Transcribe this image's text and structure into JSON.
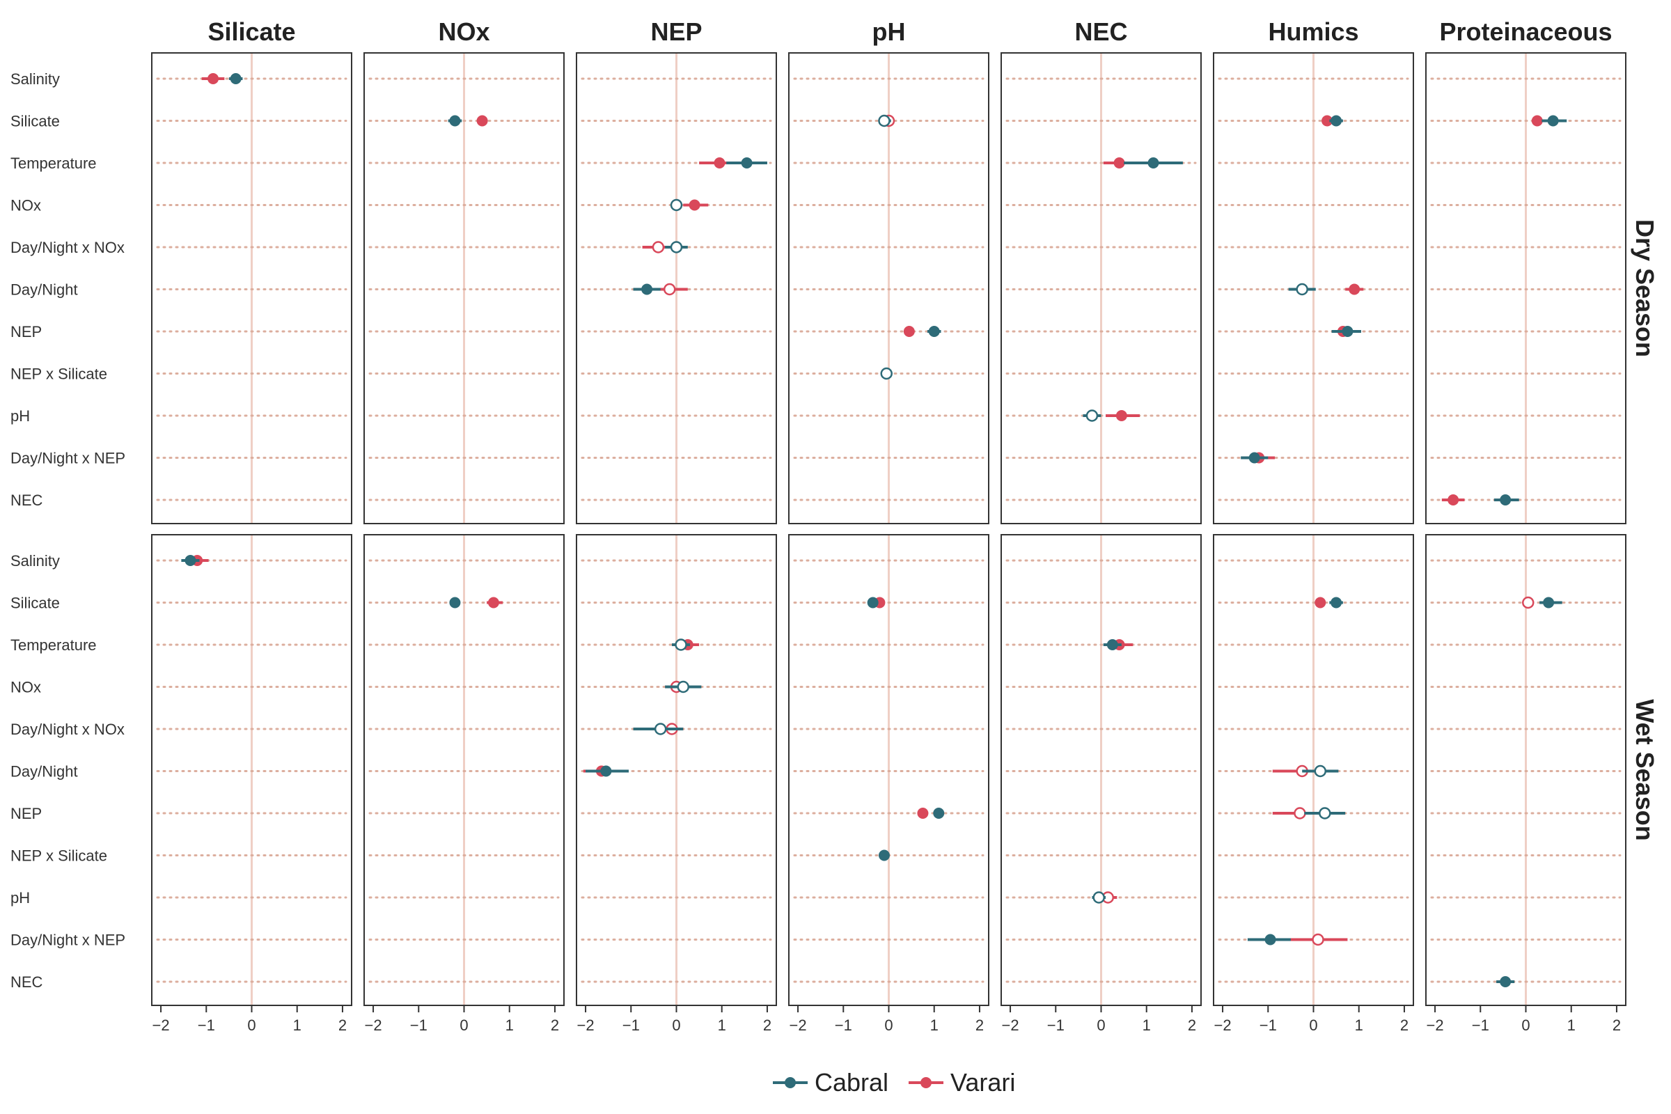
{
  "chart_data": {
    "type": "scatter",
    "subtype": "coefficient-dot-whisker",
    "columns": [
      "Silicate",
      "NOx",
      "NEP",
      "pH",
      "NEC",
      "Humics",
      "Proteinaceous"
    ],
    "rows": [
      "Dry Season",
      "Wet Season"
    ],
    "predictors": [
      "Salinity",
      "Silicate",
      "Temperature",
      "NOx",
      "Day/Night x NOx",
      "Day/Night",
      "NEP",
      "NEP x Silicate",
      "pH",
      "Day/Night x NEP",
      "NEC"
    ],
    "xlim": [
      -2.2,
      2.2
    ],
    "x_ticks": [
      -2,
      -1,
      0,
      1,
      2
    ],
    "x_tick_labels": [
      "−2",
      "−1",
      "0",
      "1",
      "2"
    ],
    "reference_line": 0,
    "legend": {
      "position": "bottom",
      "entries": [
        {
          "name": "Cabral",
          "color": "#2e6b78"
        },
        {
          "name": "Varari",
          "color": "#d9485a"
        }
      ]
    },
    "colors": {
      "Cabral": "#2e6b78",
      "Varari": "#d9485a",
      "gridline": "#dcae9e",
      "zero_line": "#efcfc5"
    },
    "points": [
      {
        "row": "Dry Season",
        "col": "Silicate",
        "pred": "Salinity",
        "site": "Varari",
        "est": -0.85,
        "lo": -1.1,
        "hi": -0.6,
        "filled": true
      },
      {
        "row": "Dry Season",
        "col": "Silicate",
        "pred": "Salinity",
        "site": "Cabral",
        "est": -0.35,
        "lo": -0.5,
        "hi": -0.2,
        "filled": true
      },
      {
        "row": "Dry Season",
        "col": "NOx",
        "pred": "Silicate",
        "site": "Cabral",
        "est": -0.2,
        "lo": -0.35,
        "hi": -0.05,
        "filled": true
      },
      {
        "row": "Dry Season",
        "col": "NOx",
        "pred": "Silicate",
        "site": "Varari",
        "est": 0.4,
        "lo": 0.3,
        "hi": 0.5,
        "filled": true
      },
      {
        "row": "Dry Season",
        "col": "NEP",
        "pred": "Temperature",
        "site": "Varari",
        "est": 0.95,
        "lo": 0.5,
        "hi": 1.35,
        "filled": true
      },
      {
        "row": "Dry Season",
        "col": "NEP",
        "pred": "Temperature",
        "site": "Cabral",
        "est": 1.55,
        "lo": 1.1,
        "hi": 2.0,
        "filled": true
      },
      {
        "row": "Dry Season",
        "col": "NEP",
        "pred": "NOx",
        "site": "Varari",
        "est": 0.4,
        "lo": 0.15,
        "hi": 0.7,
        "filled": true
      },
      {
        "row": "Dry Season",
        "col": "NEP",
        "pred": "NOx",
        "site": "Cabral",
        "est": 0.0,
        "lo": -0.1,
        "hi": 0.1,
        "filled": false
      },
      {
        "row": "Dry Season",
        "col": "NEP",
        "pred": "Day/Night x NOx",
        "site": "Varari",
        "est": -0.4,
        "lo": -0.75,
        "hi": -0.05,
        "filled": false
      },
      {
        "row": "Dry Season",
        "col": "NEP",
        "pred": "Day/Night x NOx",
        "site": "Cabral",
        "est": 0.0,
        "lo": -0.25,
        "hi": 0.25,
        "filled": false
      },
      {
        "row": "Dry Season",
        "col": "NEP",
        "pred": "Day/Night",
        "site": "Varari",
        "est": -0.15,
        "lo": -0.5,
        "hi": 0.25,
        "filled": false
      },
      {
        "row": "Dry Season",
        "col": "NEP",
        "pred": "Day/Night",
        "site": "Cabral",
        "est": -0.65,
        "lo": -0.95,
        "hi": -0.35,
        "filled": true
      },
      {
        "row": "Dry Season",
        "col": "pH",
        "pred": "Silicate",
        "site": "Varari",
        "est": 0.0,
        "lo": -0.1,
        "hi": 0.1,
        "filled": false
      },
      {
        "row": "Dry Season",
        "col": "pH",
        "pred": "Silicate",
        "site": "Cabral",
        "est": -0.1,
        "lo": -0.2,
        "hi": 0.05,
        "filled": false
      },
      {
        "row": "Dry Season",
        "col": "pH",
        "pred": "NEP",
        "site": "Varari",
        "est": 0.45,
        "lo": 0.4,
        "hi": 0.5,
        "filled": true
      },
      {
        "row": "Dry Season",
        "col": "pH",
        "pred": "NEP",
        "site": "Cabral",
        "est": 1.0,
        "lo": 0.85,
        "hi": 1.15,
        "filled": true
      },
      {
        "row": "Dry Season",
        "col": "pH",
        "pred": "NEP x Silicate",
        "site": "Cabral",
        "est": -0.05,
        "lo": -0.15,
        "hi": 0.05,
        "filled": false
      },
      {
        "row": "Dry Season",
        "col": "NEC",
        "pred": "Temperature",
        "site": "Varari",
        "est": 0.4,
        "lo": 0.05,
        "hi": 0.75,
        "filled": true
      },
      {
        "row": "Dry Season",
        "col": "NEC",
        "pred": "Temperature",
        "site": "Cabral",
        "est": 1.15,
        "lo": 0.5,
        "hi": 1.8,
        "filled": true
      },
      {
        "row": "Dry Season",
        "col": "NEC",
        "pred": "pH",
        "site": "Varari",
        "est": 0.45,
        "lo": 0.1,
        "hi": 0.85,
        "filled": true
      },
      {
        "row": "Dry Season",
        "col": "NEC",
        "pred": "pH",
        "site": "Cabral",
        "est": -0.2,
        "lo": -0.4,
        "hi": 0.0,
        "filled": false
      },
      {
        "row": "Dry Season",
        "col": "Humics",
        "pred": "Silicate",
        "site": "Varari",
        "est": 0.3,
        "lo": 0.2,
        "hi": 0.4,
        "filled": true
      },
      {
        "row": "Dry Season",
        "col": "Humics",
        "pred": "Silicate",
        "site": "Cabral",
        "est": 0.5,
        "lo": 0.35,
        "hi": 0.65,
        "filled": true
      },
      {
        "row": "Dry Season",
        "col": "Humics",
        "pred": "Day/Night",
        "site": "Cabral",
        "est": -0.25,
        "lo": -0.55,
        "hi": 0.05,
        "filled": false
      },
      {
        "row": "Dry Season",
        "col": "Humics",
        "pred": "Day/Night",
        "site": "Varari",
        "est": 0.9,
        "lo": 0.7,
        "hi": 1.1,
        "filled": true
      },
      {
        "row": "Dry Season",
        "col": "Humics",
        "pred": "NEP",
        "site": "Varari",
        "est": 0.65,
        "lo": 0.4,
        "hi": 0.9,
        "filled": true
      },
      {
        "row": "Dry Season",
        "col": "Humics",
        "pred": "NEP",
        "site": "Cabral",
        "est": 0.75,
        "lo": 0.4,
        "hi": 1.05,
        "filled": true
      },
      {
        "row": "Dry Season",
        "col": "Humics",
        "pred": "Day/Night x NEP",
        "site": "Varari",
        "est": -1.2,
        "lo": -1.5,
        "hi": -0.85,
        "filled": true
      },
      {
        "row": "Dry Season",
        "col": "Humics",
        "pred": "Day/Night x NEP",
        "site": "Cabral",
        "est": -1.3,
        "lo": -1.6,
        "hi": -1.0,
        "filled": true
      },
      {
        "row": "Dry Season",
        "col": "Proteinaceous",
        "pred": "Silicate",
        "site": "Varari",
        "est": 0.25,
        "lo": 0.15,
        "hi": 0.35,
        "filled": true
      },
      {
        "row": "Dry Season",
        "col": "Proteinaceous",
        "pred": "Silicate",
        "site": "Cabral",
        "est": 0.6,
        "lo": 0.35,
        "hi": 0.9,
        "filled": true
      },
      {
        "row": "Dry Season",
        "col": "Proteinaceous",
        "pred": "NEC",
        "site": "Varari",
        "est": -1.6,
        "lo": -1.85,
        "hi": -1.35,
        "filled": true
      },
      {
        "row": "Dry Season",
        "col": "Proteinaceous",
        "pred": "NEC",
        "site": "Cabral",
        "est": -0.45,
        "lo": -0.7,
        "hi": -0.15,
        "filled": true
      },
      {
        "row": "Wet Season",
        "col": "Silicate",
        "pred": "Salinity",
        "site": "Varari",
        "est": -1.2,
        "lo": -1.45,
        "hi": -0.95,
        "filled": true
      },
      {
        "row": "Wet Season",
        "col": "Silicate",
        "pred": "Salinity",
        "site": "Cabral",
        "est": -1.35,
        "lo": -1.55,
        "hi": -1.15,
        "filled": true
      },
      {
        "row": "Wet Season",
        "col": "NOx",
        "pred": "Silicate",
        "site": "Cabral",
        "est": -0.2,
        "lo": -0.3,
        "hi": -0.1,
        "filled": true
      },
      {
        "row": "Wet Season",
        "col": "NOx",
        "pred": "Silicate",
        "site": "Varari",
        "est": 0.65,
        "lo": 0.5,
        "hi": 0.85,
        "filled": true
      },
      {
        "row": "Wet Season",
        "col": "NEP",
        "pred": "Temperature",
        "site": "Varari",
        "est": 0.25,
        "lo": 0.1,
        "hi": 0.5,
        "filled": true
      },
      {
        "row": "Wet Season",
        "col": "NEP",
        "pred": "Temperature",
        "site": "Cabral",
        "est": 0.1,
        "lo": -0.1,
        "hi": 0.3,
        "filled": false
      },
      {
        "row": "Wet Season",
        "col": "NEP",
        "pred": "NOx",
        "site": "Varari",
        "est": 0.0,
        "lo": -0.25,
        "hi": 0.25,
        "filled": false
      },
      {
        "row": "Wet Season",
        "col": "NEP",
        "pred": "NOx",
        "site": "Cabral",
        "est": 0.15,
        "lo": -0.25,
        "hi": 0.55,
        "filled": false
      },
      {
        "row": "Wet Season",
        "col": "NEP",
        "pred": "Day/Night x NOx",
        "site": "Varari",
        "est": -0.1,
        "lo": -0.35,
        "hi": 0.15,
        "filled": false
      },
      {
        "row": "Wet Season",
        "col": "NEP",
        "pred": "Day/Night x NOx",
        "site": "Cabral",
        "est": -0.35,
        "lo": -0.95,
        "hi": 0.15,
        "filled": false
      },
      {
        "row": "Wet Season",
        "col": "NEP",
        "pred": "Day/Night",
        "site": "Varari",
        "est": -1.65,
        "lo": -2.05,
        "hi": -1.3,
        "filled": true
      },
      {
        "row": "Wet Season",
        "col": "NEP",
        "pred": "Day/Night",
        "site": "Cabral",
        "est": -1.55,
        "lo": -2.0,
        "hi": -1.05,
        "filled": true
      },
      {
        "row": "Wet Season",
        "col": "pH",
        "pred": "Silicate",
        "site": "Varari",
        "est": -0.2,
        "lo": -0.3,
        "hi": -0.1,
        "filled": true
      },
      {
        "row": "Wet Season",
        "col": "pH",
        "pred": "Silicate",
        "site": "Cabral",
        "est": -0.35,
        "lo": -0.45,
        "hi": -0.25,
        "filled": true
      },
      {
        "row": "Wet Season",
        "col": "pH",
        "pred": "NEP",
        "site": "Varari",
        "est": 0.75,
        "lo": 0.7,
        "hi": 0.8,
        "filled": true
      },
      {
        "row": "Wet Season",
        "col": "pH",
        "pred": "NEP",
        "site": "Cabral",
        "est": 1.1,
        "lo": 1.0,
        "hi": 1.2,
        "filled": true
      },
      {
        "row": "Wet Season",
        "col": "pH",
        "pred": "NEP x Silicate",
        "site": "Cabral",
        "est": -0.1,
        "lo": -0.2,
        "hi": 0.0,
        "filled": true
      },
      {
        "row": "Wet Season",
        "col": "NEC",
        "pred": "Temperature",
        "site": "Varari",
        "est": 0.4,
        "lo": 0.15,
        "hi": 0.7,
        "filled": true
      },
      {
        "row": "Wet Season",
        "col": "NEC",
        "pred": "Temperature",
        "site": "Cabral",
        "est": 0.25,
        "lo": 0.05,
        "hi": 0.45,
        "filled": true
      },
      {
        "row": "Wet Season",
        "col": "NEC",
        "pred": "pH",
        "site": "Varari",
        "est": 0.15,
        "lo": -0.05,
        "hi": 0.35,
        "filled": false
      },
      {
        "row": "Wet Season",
        "col": "NEC",
        "pred": "pH",
        "site": "Cabral",
        "est": -0.05,
        "lo": -0.2,
        "hi": 0.1,
        "filled": false
      },
      {
        "row": "Wet Season",
        "col": "Humics",
        "pred": "Silicate",
        "site": "Varari",
        "est": 0.15,
        "lo": 0.05,
        "hi": 0.25,
        "filled": true
      },
      {
        "row": "Wet Season",
        "col": "Humics",
        "pred": "Silicate",
        "site": "Cabral",
        "est": 0.5,
        "lo": 0.35,
        "hi": 0.65,
        "filled": true
      },
      {
        "row": "Wet Season",
        "col": "Humics",
        "pred": "Day/Night",
        "site": "Varari",
        "est": -0.25,
        "lo": -0.9,
        "hi": 0.4,
        "filled": false
      },
      {
        "row": "Wet Season",
        "col": "Humics",
        "pred": "Day/Night",
        "site": "Cabral",
        "est": 0.15,
        "lo": -0.25,
        "hi": 0.55,
        "filled": false
      },
      {
        "row": "Wet Season",
        "col": "Humics",
        "pred": "NEP",
        "site": "Varari",
        "est": -0.3,
        "lo": -0.9,
        "hi": 0.3,
        "filled": false
      },
      {
        "row": "Wet Season",
        "col": "Humics",
        "pred": "NEP",
        "site": "Cabral",
        "est": 0.25,
        "lo": -0.2,
        "hi": 0.7,
        "filled": false
      },
      {
        "row": "Wet Season",
        "col": "Humics",
        "pred": "Day/Night x NEP",
        "site": "Cabral",
        "est": -0.95,
        "lo": -1.45,
        "hi": -0.45,
        "filled": true
      },
      {
        "row": "Wet Season",
        "col": "Humics",
        "pred": "Day/Night x NEP",
        "site": "Varari",
        "est": 0.1,
        "lo": -0.5,
        "hi": 0.75,
        "filled": false
      },
      {
        "row": "Wet Season",
        "col": "Proteinaceous",
        "pred": "Silicate",
        "site": "Varari",
        "est": 0.05,
        "lo": 0.0,
        "hi": 0.1,
        "filled": false
      },
      {
        "row": "Wet Season",
        "col": "Proteinaceous",
        "pred": "Silicate",
        "site": "Cabral",
        "est": 0.5,
        "lo": 0.3,
        "hi": 0.8,
        "filled": true
      },
      {
        "row": "Wet Season",
        "col": "Proteinaceous",
        "pred": "NEC",
        "site": "Cabral",
        "est": -0.45,
        "lo": -0.65,
        "hi": -0.25,
        "filled": true
      }
    ]
  }
}
